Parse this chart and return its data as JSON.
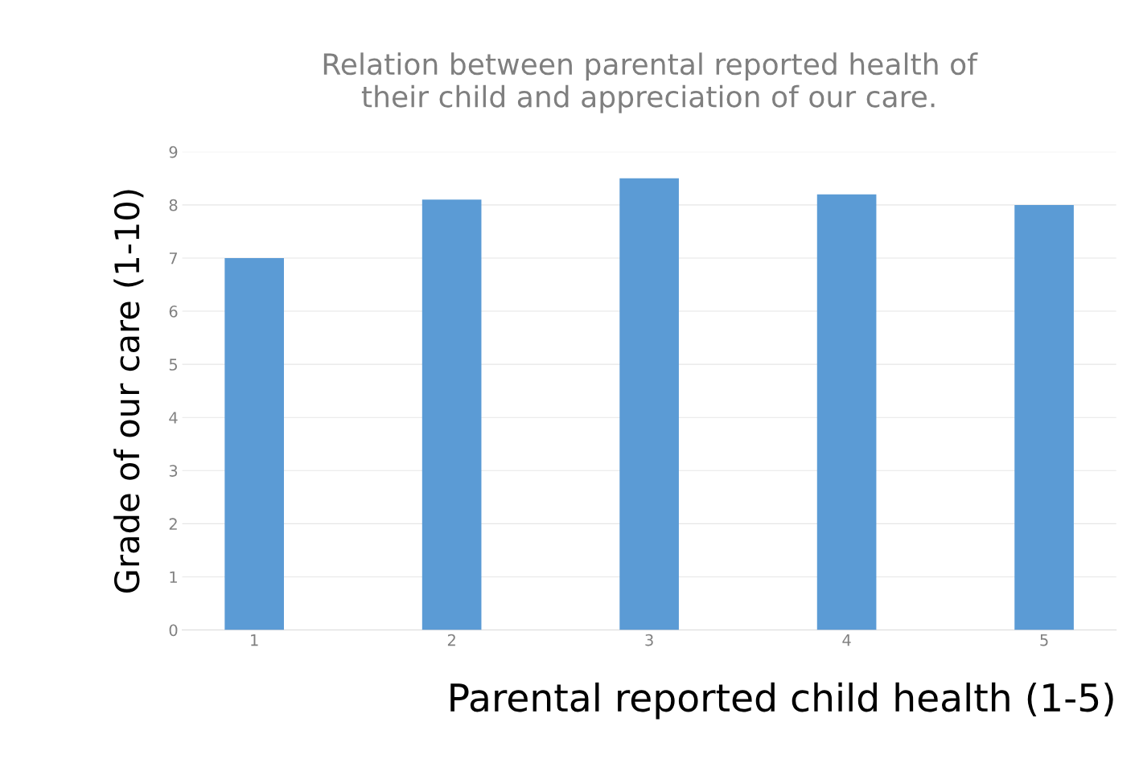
{
  "chart_data": {
    "type": "bar",
    "title": "Relation between parental reported health of\ntheir child and appreciation of our care.",
    "xlabel": "Parental reported child health (1-5)",
    "ylabel": "Grade of our care (1-10)",
    "categories": [
      "1",
      "2",
      "3",
      "4",
      "5"
    ],
    "values": [
      7.0,
      8.1,
      8.5,
      8.2,
      8.0
    ],
    "color": "#5b9bd5",
    "ylim": [
      0,
      9
    ],
    "yticks": [
      0,
      1,
      2,
      3,
      4,
      5,
      6,
      7,
      8,
      9
    ],
    "grid": "y"
  }
}
